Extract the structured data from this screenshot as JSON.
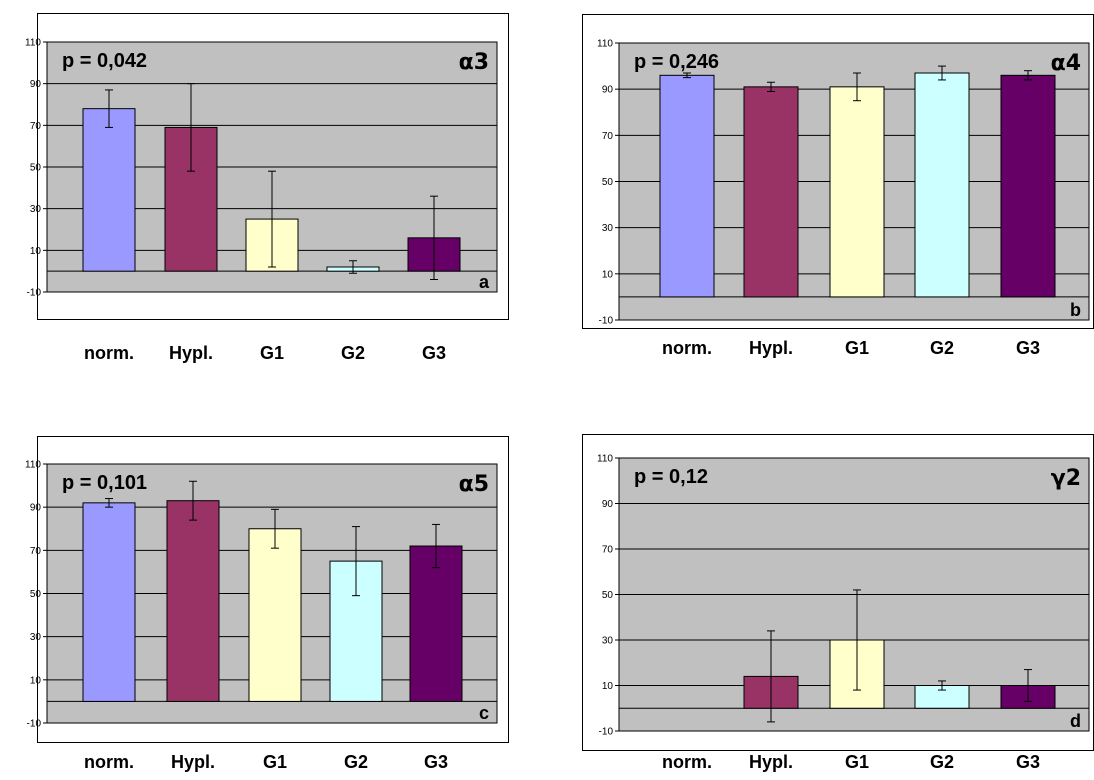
{
  "colors": {
    "plot_bg": "#c0c0c0",
    "border": "#000000",
    "bars": [
      "#9999ff",
      "#993366",
      "#ffffcc",
      "#ccffff",
      "#660066"
    ]
  },
  "chart_data": [
    {
      "type": "bar",
      "panel_letter": "a",
      "gene_label": "α3",
      "p_label": "p = 0,042",
      "categories": [
        "norm.",
        "Hypl.",
        "G1",
        "G2",
        "G3"
      ],
      "values": [
        78,
        69,
        25,
        2,
        16
      ],
      "error": [
        9,
        21,
        23,
        3,
        20
      ],
      "ylim": [
        -10,
        110
      ],
      "yticks": [
        "110",
        "90",
        "70",
        "50",
        "30",
        "10",
        "-10"
      ],
      "grid": true
    },
    {
      "type": "bar",
      "panel_letter": "b",
      "gene_label": "α4",
      "p_label": "p = 0,246",
      "categories": [
        "norm.",
        "Hypl.",
        "G1",
        "G2",
        "G3"
      ],
      "values": [
        96,
        91,
        91,
        97,
        96
      ],
      "error": [
        1,
        2,
        6,
        3,
        2
      ],
      "ylim": [
        -10,
        110
      ],
      "yticks": [
        "110",
        "90",
        "70",
        "50",
        "30",
        "10",
        "-10"
      ],
      "grid": true
    },
    {
      "type": "bar",
      "panel_letter": "c",
      "gene_label": "α5",
      "p_label": "p = 0,101",
      "categories": [
        "norm.",
        "Hypl.",
        "G1",
        "G2",
        "G3"
      ],
      "values": [
        92,
        93,
        80,
        65,
        72
      ],
      "error": [
        2,
        9,
        9,
        16,
        10
      ],
      "ylim": [
        -10,
        110
      ],
      "yticks": [
        "110",
        "90",
        "70",
        "50",
        "30",
        "10",
        "-10"
      ],
      "grid": true
    },
    {
      "type": "bar",
      "panel_letter": "d",
      "gene_label": "γ2",
      "p_label": "p = 0,12",
      "categories": [
        "norm.",
        "Hypl.",
        "G1",
        "G2",
        "G3"
      ],
      "values": [
        0,
        14,
        30,
        10,
        10
      ],
      "error": [
        0,
        20,
        22,
        2,
        7
      ],
      "ylim": [
        -10,
        110
      ],
      "yticks": [
        "110",
        "90",
        "70",
        "50",
        "30",
        "10",
        "-10"
      ],
      "grid": true
    }
  ]
}
